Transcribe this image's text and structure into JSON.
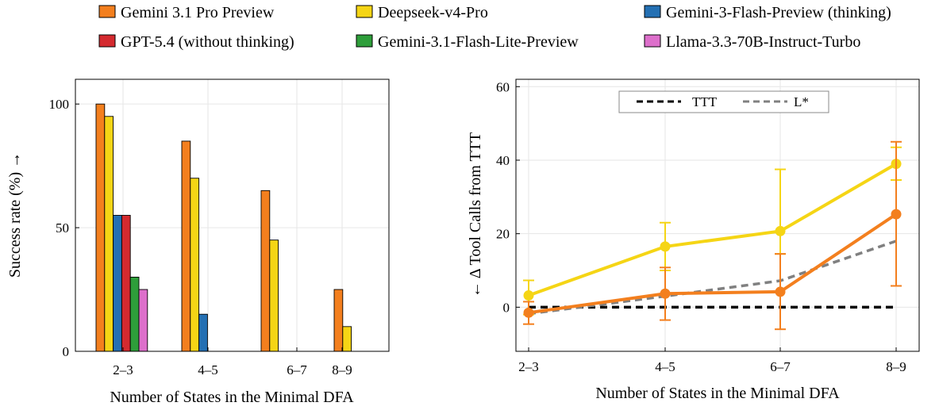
{
  "legend": {
    "items": [
      {
        "label": "Gemini 3.1 Pro Preview",
        "color": "#f37f1e"
      },
      {
        "label": "Deepseek-v4-Pro",
        "color": "#f5d515"
      },
      {
        "label": "Gemini-3-Flash-Preview (thinking)",
        "color": "#2470b3"
      },
      {
        "label": "GPT-5.4 (without thinking)",
        "color": "#d42a2f"
      },
      {
        "label": "Gemini-3.1-Flash-Lite-Preview",
        "color": "#2e9e3a"
      },
      {
        "label": "Llama-3.3-70B-Instruct-Turbo",
        "color": "#dd6fcb"
      }
    ]
  },
  "chart_data": [
    {
      "type": "bar",
      "categories": [
        "2–3",
        "4–5",
        "6–7",
        "8–9"
      ],
      "xlabel": "Number of States in the Minimal DFA",
      "ylabel": "Success rate (%) →",
      "ylim": [
        0,
        110
      ],
      "yticks": [
        0,
        50,
        100
      ],
      "grid": true,
      "series": [
        {
          "name": "Gemini 3.1 Pro Preview",
          "color": "#f37f1e",
          "values": [
            100,
            85,
            65,
            25
          ]
        },
        {
          "name": "Deepseek-v4-Pro",
          "color": "#f5d515",
          "values": [
            95,
            70,
            45,
            10
          ]
        },
        {
          "name": "Gemini-3-Flash-Preview (thinking)",
          "color": "#2470b3",
          "values": [
            55,
            15,
            0,
            0
          ]
        },
        {
          "name": "GPT-5.4 (without thinking)",
          "color": "#d42a2f",
          "values": [
            55,
            0,
            0,
            0
          ]
        },
        {
          "name": "Gemini-3.1-Flash-Lite-Preview",
          "color": "#2e9e3a",
          "values": [
            30,
            0,
            0,
            0
          ]
        },
        {
          "name": "Llama-3.3-70B-Instruct-Turbo",
          "color": "#dd6fcb",
          "values": [
            25,
            0,
            0,
            0
          ]
        }
      ]
    },
    {
      "type": "line",
      "categories": [
        "2–3",
        "4–5",
        "6–7",
        "8–9"
      ],
      "xlabel": "Number of States in the Minimal DFA",
      "ylabel": "← Δ Tool Calls from TTT",
      "ylim": [
        -12,
        62
      ],
      "yticks": [
        0,
        20,
        40,
        60
      ],
      "grid": true,
      "legend_position": "top-center",
      "legend": [
        "TTT",
        "L*"
      ],
      "series": [
        {
          "name": "Deepseek-v4-Pro",
          "color": "#f5d515",
          "values": [
            3.2,
            16.5,
            20.7,
            39
          ],
          "err_low": [
            -2,
            10,
            14.5,
            34.6
          ],
          "err_high": [
            7.3,
            23,
            37.5,
            43.5
          ]
        },
        {
          "name": "Gemini 3.1 Pro Preview",
          "color": "#f37f1e",
          "values": [
            -1.5,
            3.7,
            4.2,
            25.3
          ],
          "err_low": [
            -4.6,
            -3.5,
            -6,
            5.8
          ],
          "err_high": [
            1.5,
            10.8,
            14.5,
            45
          ]
        },
        {
          "name": "TTT",
          "color": "#000000",
          "style": "dashed",
          "values": [
            0,
            0,
            0,
            0
          ]
        },
        {
          "name": "L*",
          "color": "#808080",
          "style": "dashed",
          "values": [
            -1.8,
            3,
            7.2,
            18
          ]
        }
      ]
    }
  ]
}
